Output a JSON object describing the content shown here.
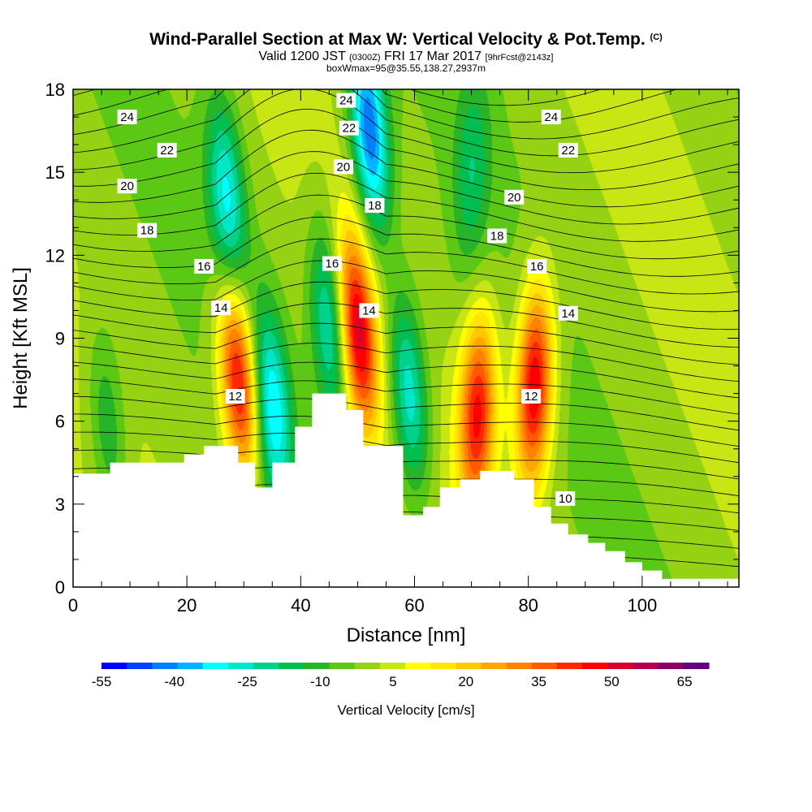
{
  "header": {
    "title": "Wind-Parallel Section at Max W: Vertical Velocity & Pot.Temp.",
    "copyright": "(C)",
    "valid_prefix": "Valid 1200 JST",
    "valid_utc": "(0300Z)",
    "valid_date": "FRI 17 Mar 2017",
    "forecast": "[9hrFcst@2143z]",
    "box_info": "boxWmax=95@35.55,138.27,2937m"
  },
  "colors": {
    "terrain": "#ffffff",
    "contour_line": "#000000",
    "colorbar": [
      "#0000ff",
      "#0040ff",
      "#0080ff",
      "#00b4ff",
      "#00ffff",
      "#00e6c8",
      "#00d28c",
      "#00be50",
      "#28b428",
      "#5ac814",
      "#96d214",
      "#c8e614",
      "#ffff00",
      "#ffe600",
      "#ffc800",
      "#ffa500",
      "#ff8200",
      "#ff5a00",
      "#ff2800",
      "#ff0000",
      "#d7002d",
      "#b4004b",
      "#8c0064",
      "#640082"
    ]
  },
  "chart_data": {
    "type": "heatmap",
    "title": "Wind-Parallel Section at Max W: Vertical Velocity & Pot.Temp.",
    "xlabel": "Distance [nm]",
    "ylabel": "Height [Kft MSL]",
    "xlim": [
      0,
      117
    ],
    "ylim": [
      0,
      18
    ],
    "x_ticks": [
      "0",
      "20",
      "40",
      "60",
      "80",
      "100"
    ],
    "y_ticks": [
      "0",
      "3",
      "6",
      "9",
      "12",
      "15",
      "18"
    ],
    "colorbar": {
      "title": "Vertical Velocity [cm/s]",
      "min": -55,
      "max": 70,
      "labels": [
        "-55",
        "-40",
        "-25",
        "-10",
        "5",
        "20",
        "35",
        "50",
        "65"
      ]
    },
    "terrain_kft": [
      [
        0,
        4.1
      ],
      [
        6.5,
        4.1
      ],
      [
        6.5,
        4.5
      ],
      [
        19.5,
        4.5
      ],
      [
        19.5,
        4.8
      ],
      [
        23,
        4.8
      ],
      [
        23,
        5.1
      ],
      [
        29,
        5.1
      ],
      [
        29,
        4.5
      ],
      [
        32,
        4.5
      ],
      [
        32,
        3.6
      ],
      [
        35,
        3.6
      ],
      [
        35,
        4.5
      ],
      [
        39,
        4.5
      ],
      [
        39,
        5.8
      ],
      [
        42,
        5.8
      ],
      [
        42,
        7.0
      ],
      [
        48,
        7.0
      ],
      [
        48,
        6.4
      ],
      [
        51,
        6.4
      ],
      [
        51,
        5.1
      ],
      [
        58,
        5.1
      ],
      [
        58,
        2.6
      ],
      [
        61.5,
        2.6
      ],
      [
        61.5,
        2.9
      ],
      [
        64.5,
        2.9
      ],
      [
        64.5,
        3.6
      ],
      [
        68,
        3.6
      ],
      [
        68,
        3.9
      ],
      [
        71.5,
        3.9
      ],
      [
        71.5,
        4.2
      ],
      [
        77.5,
        4.2
      ],
      [
        77.5,
        3.9
      ],
      [
        81,
        3.9
      ],
      [
        81,
        2.9
      ],
      [
        84,
        2.9
      ],
      [
        84,
        2.3
      ],
      [
        87,
        2.3
      ],
      [
        87,
        1.9
      ],
      [
        90.5,
        1.9
      ],
      [
        90.5,
        1.6
      ],
      [
        93.5,
        1.6
      ],
      [
        93.5,
        1.3
      ],
      [
        97,
        1.3
      ],
      [
        97,
        0.9
      ],
      [
        100,
        0.9
      ],
      [
        100,
        0.6
      ],
      [
        103.5,
        0.6
      ],
      [
        103.5,
        0.3
      ],
      [
        117,
        0.3
      ]
    ],
    "velocity_features": [
      {
        "x": 29,
        "y": 7.5,
        "value": 50
      },
      {
        "x": 35,
        "y": 6.5,
        "value": -32
      },
      {
        "x": 45,
        "y": 9.5,
        "value": -28
      },
      {
        "x": 50,
        "y": 9.2,
        "value": 50
      },
      {
        "x": 52,
        "y": 16.5,
        "value": -45
      },
      {
        "x": 59,
        "y": 7.0,
        "value": -30
      },
      {
        "x": 71,
        "y": 6.3,
        "value": 45
      },
      {
        "x": 81,
        "y": 7.3,
        "value": 52
      },
      {
        "x": 6,
        "y": 5.8,
        "value": -15
      },
      {
        "x": 27,
        "y": 14,
        "value": -30
      },
      {
        "x": 70,
        "y": 15,
        "value": -15
      }
    ],
    "theta_contour_labels": [
      {
        "text": "24",
        "x": 9.5,
        "y": 17.0
      },
      {
        "text": "22",
        "x": 16.5,
        "y": 15.8
      },
      {
        "text": "20",
        "x": 9.5,
        "y": 14.5
      },
      {
        "text": "18",
        "x": 13,
        "y": 12.9
      },
      {
        "text": "16",
        "x": 23,
        "y": 11.6
      },
      {
        "text": "14",
        "x": 26,
        "y": 10.1
      },
      {
        "text": "12",
        "x": 28.5,
        "y": 6.9
      },
      {
        "text": "16",
        "x": 45.5,
        "y": 11.7
      },
      {
        "text": "24",
        "x": 48,
        "y": 17.6
      },
      {
        "text": "22",
        "x": 48.5,
        "y": 16.6
      },
      {
        "text": "20",
        "x": 47.5,
        "y": 15.2
      },
      {
        "text": "18",
        "x": 53,
        "y": 13.8
      },
      {
        "text": "14",
        "x": 52,
        "y": 10.0
      },
      {
        "text": "24",
        "x": 84,
        "y": 17.0
      },
      {
        "text": "22",
        "x": 87,
        "y": 15.8
      },
      {
        "text": "20",
        "x": 77.5,
        "y": 14.1
      },
      {
        "text": "18",
        "x": 74.5,
        "y": 12.7
      },
      {
        "text": "16",
        "x": 81.5,
        "y": 11.6
      },
      {
        "text": "14",
        "x": 87,
        "y": 9.9
      },
      {
        "text": "12",
        "x": 80.5,
        "y": 6.9
      },
      {
        "text": "10",
        "x": 86.5,
        "y": 3.2
      }
    ]
  }
}
